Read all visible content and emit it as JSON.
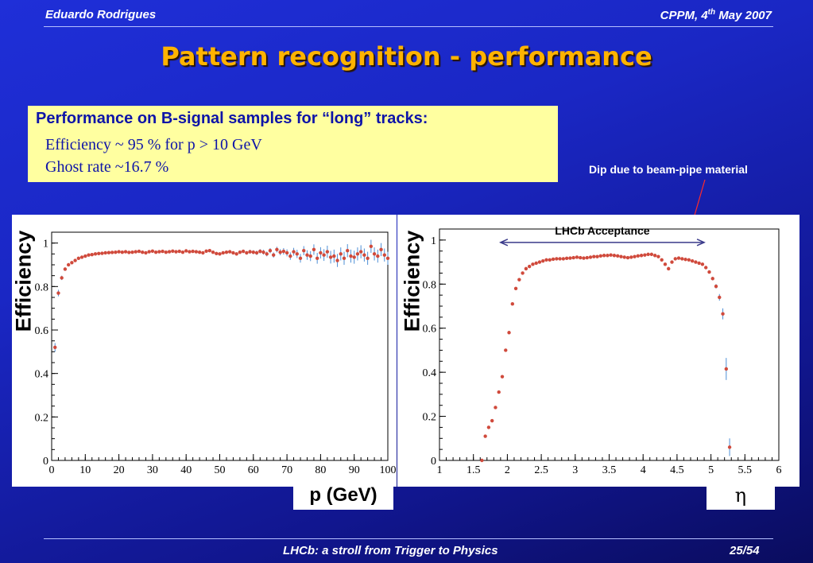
{
  "header": {
    "author": "Eduardo Rodrigues",
    "venue_prefix": "CPPM, 4",
    "venue_sup": "th",
    "venue_suffix": " May 2007"
  },
  "title": "Pattern recognition - performance",
  "summary": {
    "heading": "Performance on B-signal samples for “long” tracks:",
    "efficiency": "Efficiency  ~ 95 % for p > 10 GeV",
    "ghost_rate": "Ghost rate ~16.7 %"
  },
  "annotation": "Dip due to beam-pipe material",
  "footer": {
    "talk": "LHCb: a stroll from Trigger to Physics",
    "page": "25/54"
  },
  "colors": {
    "marker": "#d04a3c",
    "errorbar": "#4d8fd6",
    "arrow": "#3a3a8a",
    "annotation_line": "#ff2a2a",
    "title": "#ffb300",
    "box": "#ffffa0"
  },
  "chart_data": [
    {
      "type": "scatter",
      "ylabel": "Efficiency",
      "xlabel": "p (GeV)",
      "xlim": [
        0,
        100
      ],
      "ylim": [
        0,
        1.05
      ],
      "xticks": [
        0,
        10,
        20,
        30,
        40,
        50,
        60,
        70,
        80,
        90,
        100
      ],
      "xtick_labels": [
        "0",
        "10",
        "20",
        "30",
        "40",
        "50",
        "60",
        "70",
        "80",
        "90",
        "100"
      ],
      "yticks": [
        0,
        0.2,
        0.4,
        0.6,
        0.8,
        1
      ],
      "ytick_labels": [
        "0",
        "0.2",
        "0.4",
        "0.6",
        "0.8",
        "1"
      ],
      "x": [
        1,
        2,
        3,
        4,
        5,
        6,
        7,
        8,
        9,
        10,
        11,
        12,
        13,
        14,
        15,
        16,
        17,
        18,
        19,
        20,
        21,
        22,
        23,
        24,
        25,
        26,
        27,
        28,
        29,
        30,
        31,
        32,
        33,
        34,
        35,
        36,
        37,
        38,
        39,
        40,
        41,
        42,
        43,
        44,
        45,
        46,
        47,
        48,
        49,
        50,
        51,
        52,
        53,
        54,
        55,
        56,
        57,
        58,
        59,
        60,
        61,
        62,
        63,
        64,
        65,
        66,
        67,
        68,
        69,
        70,
        71,
        72,
        73,
        74,
        75,
        76,
        77,
        78,
        79,
        80,
        81,
        82,
        83,
        84,
        85,
        86,
        87,
        88,
        89,
        90,
        91,
        92,
        93,
        94,
        95,
        96,
        97,
        98,
        99,
        100
      ],
      "y": [
        0.52,
        0.77,
        0.84,
        0.88,
        0.9,
        0.91,
        0.92,
        0.93,
        0.935,
        0.94,
        0.945,
        0.947,
        0.95,
        0.952,
        0.953,
        0.955,
        0.956,
        0.957,
        0.958,
        0.96,
        0.958,
        0.96,
        0.957,
        0.958,
        0.96,
        0.962,
        0.958,
        0.955,
        0.96,
        0.963,
        0.958,
        0.96,
        0.962,
        0.958,
        0.96,
        0.963,
        0.96,
        0.962,
        0.958,
        0.964,
        0.96,
        0.962,
        0.96,
        0.958,
        0.955,
        0.963,
        0.965,
        0.958,
        0.952,
        0.95,
        0.955,
        0.958,
        0.96,
        0.955,
        0.95,
        0.958,
        0.962,
        0.955,
        0.96,
        0.958,
        0.955,
        0.962,
        0.958,
        0.95,
        0.965,
        0.945,
        0.97,
        0.958,
        0.962,
        0.955,
        0.94,
        0.96,
        0.95,
        0.93,
        0.965,
        0.945,
        0.94,
        0.97,
        0.93,
        0.955,
        0.945,
        0.96,
        0.935,
        0.94,
        0.92,
        0.95,
        0.93,
        0.965,
        0.94,
        0.935,
        0.95,
        0.96,
        0.945,
        0.93,
        0.985,
        0.95,
        0.94,
        0.97,
        0.945,
        0.93
      ],
      "yerr": [
        0.02,
        0.015,
        0.01,
        0.008,
        0.006,
        0.005,
        0.004,
        0.004,
        0.004,
        0.004,
        0.004,
        0.004,
        0.004,
        0.004,
        0.004,
        0.004,
        0.004,
        0.004,
        0.004,
        0.004,
        0.004,
        0.004,
        0.004,
        0.004,
        0.004,
        0.004,
        0.004,
        0.004,
        0.004,
        0.004,
        0.004,
        0.004,
        0.004,
        0.004,
        0.004,
        0.004,
        0.004,
        0.004,
        0.004,
        0.004,
        0.005,
        0.005,
        0.005,
        0.005,
        0.005,
        0.005,
        0.005,
        0.005,
        0.006,
        0.006,
        0.006,
        0.006,
        0.007,
        0.007,
        0.007,
        0.008,
        0.008,
        0.008,
        0.009,
        0.009,
        0.01,
        0.01,
        0.011,
        0.011,
        0.012,
        0.012,
        0.013,
        0.014,
        0.015,
        0.016,
        0.017,
        0.018,
        0.019,
        0.02,
        0.021,
        0.022,
        0.023,
        0.024,
        0.025,
        0.026,
        0.027,
        0.028,
        0.029,
        0.03,
        0.03,
        0.03,
        0.03,
        0.03,
        0.03,
        0.03,
        0.03,
        0.03,
        0.03,
        0.03,
        0.03,
        0.03,
        0.03,
        0.03,
        0.03,
        0.03
      ]
    },
    {
      "type": "scatter",
      "ylabel": "Efficiency",
      "xlabel": "η",
      "annotation": "LHCb Acceptance",
      "acceptance_range": [
        1.9,
        4.9
      ],
      "xlim": [
        1,
        6
      ],
      "ylim": [
        0,
        1.05
      ],
      "xticks": [
        1,
        1.5,
        2,
        2.5,
        3,
        3.5,
        4,
        4.5,
        5,
        5.5,
        6
      ],
      "xtick_labels": [
        "1",
        "1.5",
        "2",
        "2.5",
        "3",
        "3.5",
        "4",
        "4.5",
        "5",
        "5.5",
        "6"
      ],
      "yticks": [
        0,
        0.2,
        0.4,
        0.6,
        0.8,
        1
      ],
      "ytick_labels": [
        "0",
        "0.2",
        "0.4",
        "0.6",
        "0.8",
        "1"
      ],
      "x": [
        1.625,
        1.675,
        1.725,
        1.775,
        1.825,
        1.875,
        1.925,
        1.975,
        2.025,
        2.075,
        2.125,
        2.175,
        2.225,
        2.275,
        2.325,
        2.375,
        2.425,
        2.475,
        2.525,
        2.575,
        2.625,
        2.675,
        2.725,
        2.775,
        2.825,
        2.875,
        2.925,
        2.975,
        3.025,
        3.075,
        3.125,
        3.175,
        3.225,
        3.275,
        3.325,
        3.375,
        3.425,
        3.475,
        3.525,
        3.575,
        3.625,
        3.675,
        3.725,
        3.775,
        3.825,
        3.875,
        3.925,
        3.975,
        4.025,
        4.075,
        4.125,
        4.175,
        4.225,
        4.275,
        4.325,
        4.375,
        4.425,
        4.475,
        4.525,
        4.575,
        4.625,
        4.675,
        4.725,
        4.775,
        4.825,
        4.875,
        4.925,
        4.975,
        5.025,
        5.075,
        5.125,
        5.175,
        5.225,
        5.275
      ],
      "y": [
        0.0,
        0.11,
        0.15,
        0.18,
        0.24,
        0.31,
        0.38,
        0.5,
        0.58,
        0.71,
        0.78,
        0.82,
        0.85,
        0.87,
        0.88,
        0.89,
        0.895,
        0.9,
        0.905,
        0.91,
        0.91,
        0.913,
        0.915,
        0.915,
        0.915,
        0.917,
        0.918,
        0.92,
        0.922,
        0.92,
        0.918,
        0.92,
        0.922,
        0.925,
        0.925,
        0.928,
        0.93,
        0.93,
        0.932,
        0.93,
        0.928,
        0.925,
        0.922,
        0.92,
        0.922,
        0.925,
        0.928,
        0.93,
        0.932,
        0.935,
        0.935,
        0.93,
        0.925,
        0.91,
        0.89,
        0.87,
        0.9,
        0.915,
        0.918,
        0.915,
        0.912,
        0.91,
        0.905,
        0.9,
        0.895,
        0.89,
        0.875,
        0.855,
        0.825,
        0.79,
        0.74,
        0.665,
        0.415,
        0.06
      ],
      "yerr": [
        0.004,
        0.004,
        0.004,
        0.004,
        0.004,
        0.004,
        0.004,
        0.004,
        0.004,
        0.004,
        0.004,
        0.004,
        0.004,
        0.004,
        0.004,
        0.004,
        0.004,
        0.004,
        0.004,
        0.004,
        0.004,
        0.004,
        0.004,
        0.004,
        0.004,
        0.004,
        0.004,
        0.004,
        0.004,
        0.004,
        0.004,
        0.004,
        0.004,
        0.004,
        0.004,
        0.004,
        0.004,
        0.004,
        0.004,
        0.004,
        0.004,
        0.004,
        0.004,
        0.004,
        0.004,
        0.004,
        0.004,
        0.004,
        0.004,
        0.004,
        0.004,
        0.004,
        0.004,
        0.004,
        0.004,
        0.004,
        0.004,
        0.004,
        0.004,
        0.004,
        0.004,
        0.004,
        0.004,
        0.004,
        0.004,
        0.005,
        0.006,
        0.007,
        0.008,
        0.01,
        0.015,
        0.025,
        0.05,
        0.04
      ]
    }
  ]
}
